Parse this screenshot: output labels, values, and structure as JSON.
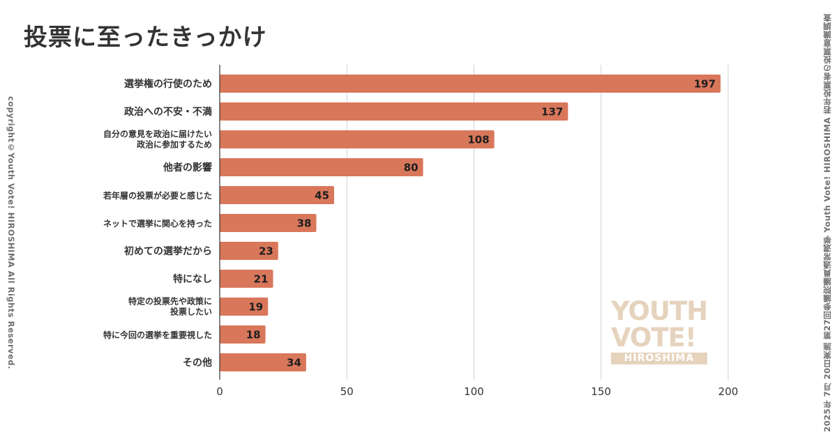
{
  "header": {
    "title": "投票に至ったきっかけ"
  },
  "side": {
    "left": "copyright©Youth Vote! HIROSHIMA  All Rights Reserved.",
    "right": "2025年 7月 20日実施  第27回参議院議員通常選挙  Youth Vote! HIROSHIMA 若年投票者の投票意識調査"
  },
  "logo": {
    "line1": "YOUTH",
    "line2": "VOTE!",
    "line3": "HIROSHIMA"
  },
  "colors": {
    "bar": "#d9775b",
    "grid": "#d0d0d0",
    "axis": "#333333",
    "logo": "#e6d3bd"
  },
  "chart_data": {
    "type": "bar",
    "orientation": "horizontal",
    "title": "投票に至ったきっかけ",
    "categories": [
      [
        "選挙権の行使のため"
      ],
      [
        "政治への不安・不満"
      ],
      [
        "自分の意見を政治に届けたい",
        "政治に参加するため"
      ],
      [
        "他者の影響"
      ],
      [
        "若年層の投票が必要と感じた"
      ],
      [
        "ネットで選挙に関心を持った"
      ],
      [
        "初めての選挙だから"
      ],
      [
        "特になし"
      ],
      [
        "特定の投票先や政策に",
        "投票したい"
      ],
      [
        "特に今回の選挙を重要視した"
      ],
      [
        "その他"
      ]
    ],
    "values": [
      197,
      137,
      108,
      80,
      45,
      38,
      23,
      21,
      19,
      18,
      34
    ],
    "xlim": [
      0,
      200
    ],
    "xticks": [
      0,
      50,
      100,
      150,
      200
    ],
    "grid": true
  }
}
